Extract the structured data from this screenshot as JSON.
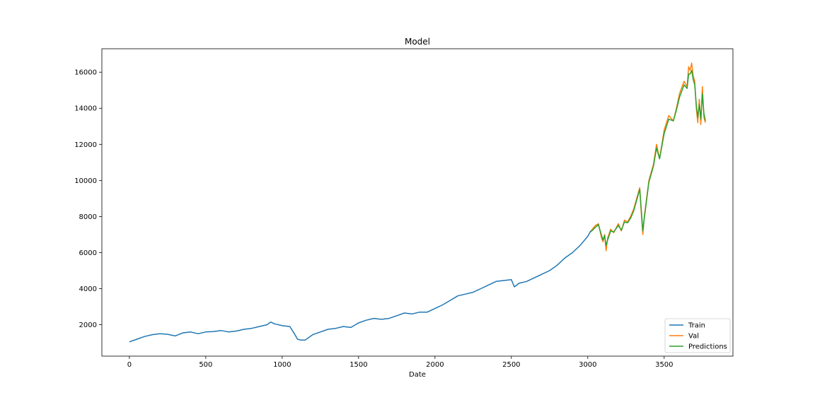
{
  "chart_data": {
    "type": "line",
    "title": "Model",
    "xlabel": "Date",
    "ylabel": "",
    "xlim": [
      -180,
      3950
    ],
    "ylim": [
      260,
      17300
    ],
    "xticks": [
      0,
      500,
      1000,
      1500,
      2000,
      2500,
      3000,
      3500
    ],
    "yticks": [
      2000,
      4000,
      6000,
      8000,
      10000,
      12000,
      14000,
      16000
    ],
    "grid": false,
    "legend_position": "lower right",
    "series": [
      {
        "name": "Train",
        "color": "#1f77b4",
        "x": [
          0,
          50,
          100,
          150,
          200,
          250,
          300,
          350,
          400,
          450,
          500,
          550,
          600,
          650,
          700,
          750,
          800,
          850,
          900,
          925,
          950,
          1000,
          1050,
          1080,
          1100,
          1120,
          1150,
          1200,
          1250,
          1300,
          1350,
          1400,
          1450,
          1500,
          1550,
          1600,
          1650,
          1700,
          1750,
          1800,
          1850,
          1900,
          1950,
          2000,
          2050,
          2100,
          2150,
          2200,
          2250,
          2300,
          2350,
          2400,
          2450,
          2500,
          2520,
          2550,
          2600,
          2650,
          2700,
          2750,
          2800,
          2850,
          2900,
          2950,
          3000,
          3020
        ],
        "values": [
          1050,
          1200,
          1350,
          1450,
          1500,
          1470,
          1380,
          1550,
          1600,
          1500,
          1600,
          1620,
          1680,
          1600,
          1650,
          1750,
          1800,
          1900,
          2000,
          2150,
          2050,
          1950,
          1900,
          1500,
          1200,
          1150,
          1150,
          1450,
          1600,
          1750,
          1800,
          1900,
          1850,
          2100,
          2250,
          2350,
          2300,
          2350,
          2500,
          2650,
          2600,
          2700,
          2700,
          2900,
          3100,
          3350,
          3600,
          3700,
          3800,
          4000,
          4200,
          4400,
          4450,
          4500,
          4100,
          4300,
          4400,
          4600,
          4800,
          5000,
          5300,
          5700,
          6000,
          6400,
          6900,
          7200
        ]
      },
      {
        "name": "Val",
        "color": "#ff7f0e",
        "x": [
          3020,
          3050,
          3070,
          3090,
          3100,
          3110,
          3120,
          3130,
          3150,
          3170,
          3200,
          3220,
          3240,
          3260,
          3280,
          3300,
          3320,
          3340,
          3350,
          3360,
          3370,
          3400,
          3430,
          3450,
          3470,
          3500,
          3530,
          3560,
          3580,
          3600,
          3630,
          3650,
          3660,
          3670,
          3680,
          3690,
          3700,
          3710,
          3720,
          3730,
          3740,
          3750,
          3760,
          3770
        ],
        "values": [
          7200,
          7500,
          7600,
          6800,
          6600,
          7000,
          6100,
          6800,
          7300,
          7100,
          7600,
          7200,
          7800,
          7700,
          8000,
          8400,
          9000,
          9600,
          8200,
          7000,
          8000,
          10000,
          10900,
          12000,
          11200,
          12800,
          13600,
          13300,
          14000,
          14800,
          15500,
          15200,
          16300,
          16100,
          16500,
          15800,
          15500,
          14000,
          13200,
          14500,
          13100,
          15200,
          13500,
          13200
        ]
      },
      {
        "name": "Predictions",
        "color": "#2ca02c",
        "x": [
          3020,
          3050,
          3070,
          3090,
          3100,
          3110,
          3120,
          3130,
          3150,
          3170,
          3200,
          3220,
          3240,
          3260,
          3280,
          3300,
          3320,
          3340,
          3350,
          3360,
          3370,
          3400,
          3430,
          3450,
          3470,
          3500,
          3530,
          3560,
          3580,
          3600,
          3630,
          3650,
          3660,
          3670,
          3680,
          3690,
          3700,
          3710,
          3720,
          3730,
          3740,
          3750,
          3760,
          3770
        ],
        "values": [
          7150,
          7400,
          7550,
          6950,
          6700,
          6950,
          6400,
          6700,
          7200,
          7150,
          7500,
          7250,
          7700,
          7650,
          7900,
          8300,
          8900,
          9500,
          8400,
          7200,
          7900,
          9900,
          10800,
          11800,
          11200,
          12600,
          13400,
          13300,
          13900,
          14600,
          15300,
          15100,
          15900,
          15900,
          16100,
          15600,
          15300,
          14200,
          13500,
          14200,
          13400,
          14800,
          13700,
          13300
        ]
      }
    ]
  }
}
